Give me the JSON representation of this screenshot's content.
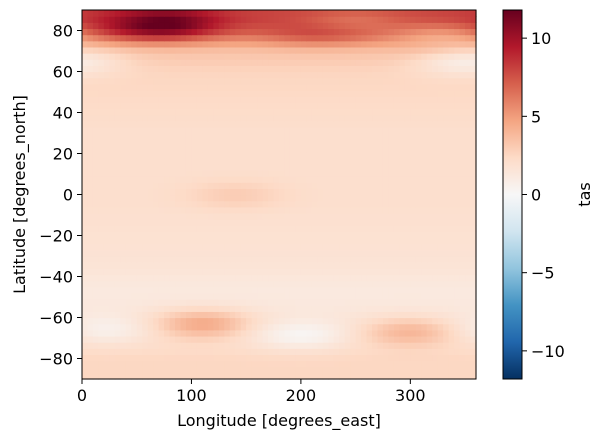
{
  "chart_data": {
    "type": "heatmap",
    "title": "",
    "xlabel": "Longitude [degrees_east]",
    "ylabel": "Latitude [degrees_north]",
    "xlim": [
      0,
      360
    ],
    "ylim": [
      -90,
      90
    ],
    "xticks": [
      0,
      100,
      200,
      300
    ],
    "xtick_labels": [
      "0",
      "100",
      "200",
      "300"
    ],
    "yticks": [
      -80,
      -60,
      -40,
      -20,
      0,
      20,
      40,
      60,
      80
    ],
    "ytick_labels": [
      "−80",
      "−60",
      "−40",
      "−20",
      "0",
      "20",
      "40",
      "60",
      "80"
    ],
    "colorbar": {
      "label": "tas",
      "vmin": -11.8,
      "vmax": 11.8,
      "ticks": [
        -10,
        -5,
        0,
        5,
        10
      ],
      "tick_labels": [
        "−10",
        "−5",
        "0",
        "5",
        "10"
      ],
      "colormap": "RdBu_r",
      "colormap_stops": [
        "#053061",
        "#2166ac",
        "#4393c3",
        "#92c5de",
        "#d1e5f0",
        "#f7f7f7",
        "#fddbc7",
        "#f4a582",
        "#d6604d",
        "#b2182b",
        "#67001f"
      ]
    },
    "grid": false,
    "field_lat": [
      -90,
      -85,
      -80,
      -75,
      -70,
      -65,
      -60,
      -55,
      -50,
      -45,
      -40,
      -35,
      -30,
      -25,
      -20,
      -15,
      -10,
      -5,
      0,
      5,
      10,
      15,
      20,
      25,
      30,
      35,
      40,
      45,
      50,
      55,
      60,
      65,
      70,
      75,
      80,
      85,
      90
    ],
    "field_zonal_mean": [
      2.5,
      2.5,
      2.5,
      2.2,
      2.0,
      1.6,
      1.5,
      1.3,
      1.2,
      1.2,
      1.4,
      1.6,
      1.7,
      1.8,
      1.8,
      1.9,
      1.9,
      2.0,
      2.0,
      2.0,
      2.0,
      2.0,
      2.0,
      2.0,
      2.0,
      2.1,
      2.2,
      2.3,
      2.4,
      2.5,
      2.6,
      3.0,
      3.4,
      5.0,
      7.0,
      8.0,
      8.0
    ],
    "field_features": [
      {
        "lon": 80,
        "lat": 84,
        "value": 11.5
      },
      {
        "lon": 40,
        "lat": 84,
        "value": 9.0
      },
      {
        "lon": 210,
        "lat": 82,
        "value": 8.0
      },
      {
        "lon": 250,
        "lat": 84,
        "value": 6.5
      },
      {
        "lon": 110,
        "lat": -63,
        "value": 4.5
      },
      {
        "lon": 300,
        "lat": -67,
        "value": 4.0
      },
      {
        "lon": 200,
        "lat": -68,
        "value": 0.2
      },
      {
        "lon": 20,
        "lat": -65,
        "value": 0.5
      },
      {
        "lon": 350,
        "lat": 65,
        "value": 0.8
      },
      {
        "lon": 140,
        "lat": 0,
        "value": 3.0
      },
      {
        "lon": 330,
        "lat": 75,
        "value": 4.5
      }
    ]
  }
}
